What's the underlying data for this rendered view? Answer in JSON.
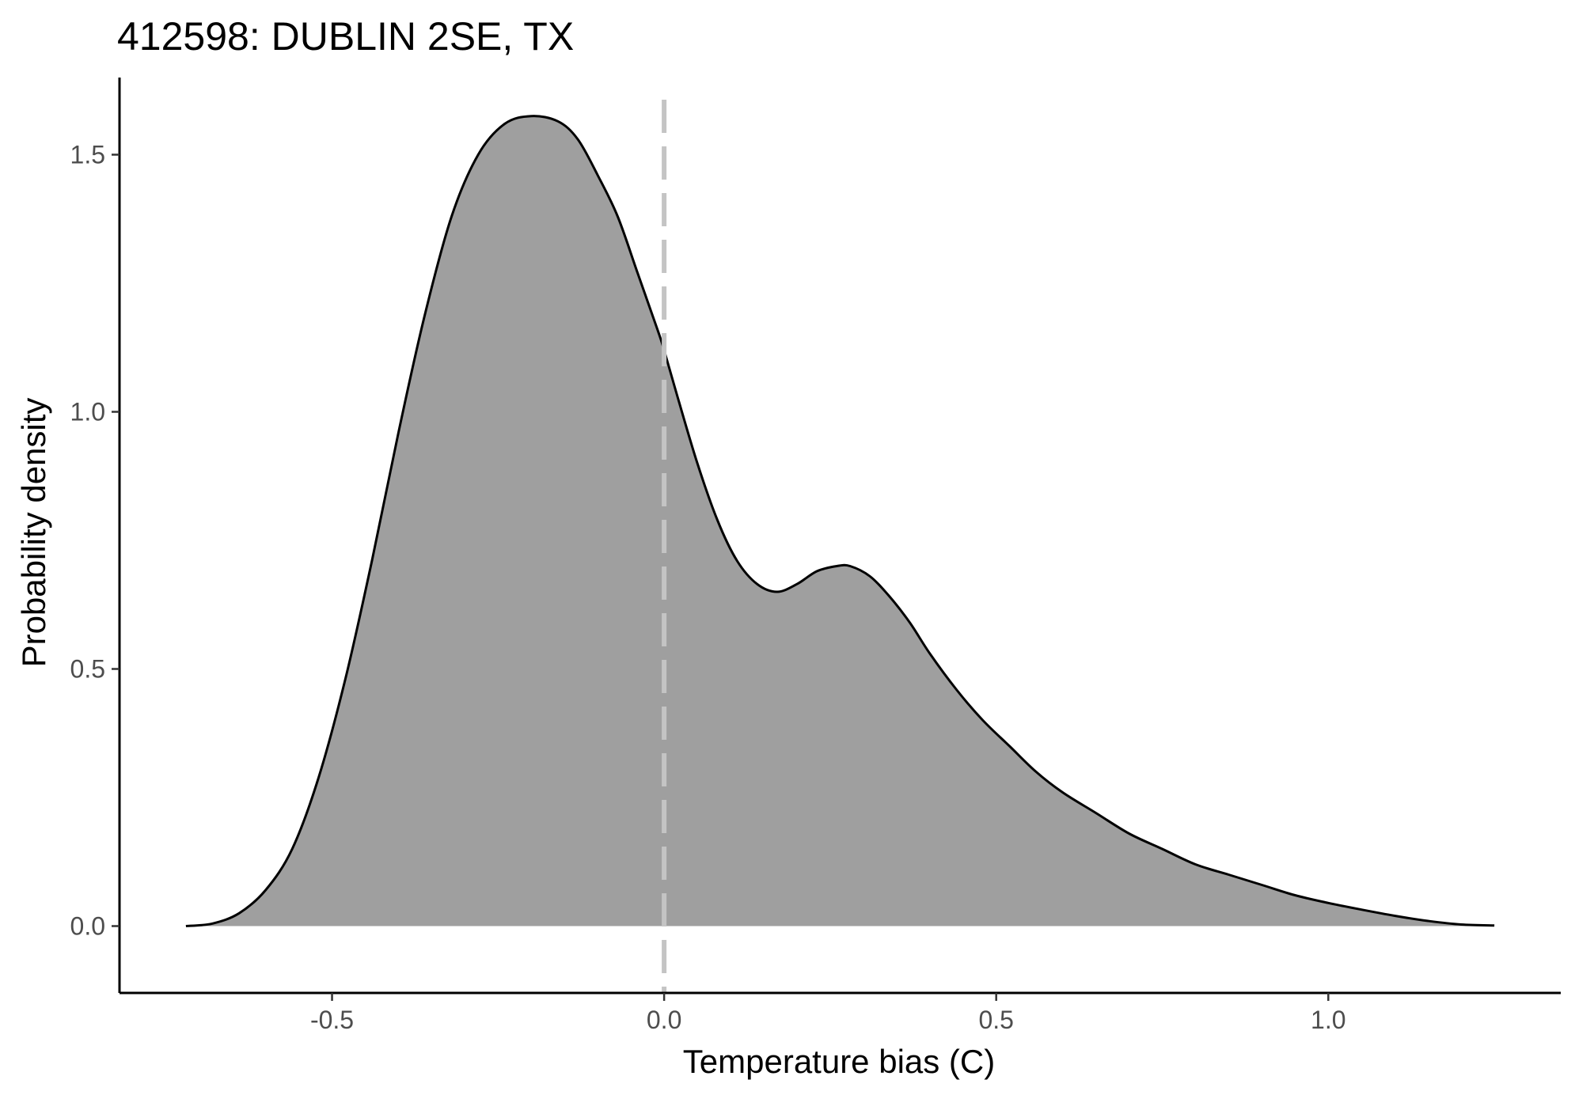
{
  "chart_data": {
    "type": "area",
    "title": "412598: DUBLIN 2SE, TX",
    "xlabel": "Temperature bias (C)",
    "ylabel": "Probability density",
    "xlim": [
      -0.82,
      1.35
    ],
    "ylim": [
      -0.13,
      1.65
    ],
    "x_ticks": [
      -0.5,
      0.0,
      0.5,
      1.0
    ],
    "x_tick_labels": [
      "-0.5",
      "0.0",
      "0.5",
      "1.0"
    ],
    "y_ticks": [
      0.0,
      0.5,
      1.0,
      1.5
    ],
    "y_tick_labels": [
      "0.0",
      "0.5",
      "1.0",
      "1.5"
    ],
    "grid": false,
    "fill_color": "#9f9f9f",
    "line_color": "#000000",
    "reference_line": {
      "x": 0.0,
      "style": "dashed",
      "color": "#c4c4c4"
    },
    "series": [
      {
        "x": [
          -0.72,
          -0.68,
          -0.64,
          -0.6,
          -0.56,
          -0.52,
          -0.48,
          -0.44,
          -0.4,
          -0.36,
          -0.32,
          -0.28,
          -0.24,
          -0.2,
          -0.16,
          -0.13,
          -0.1,
          -0.07,
          -0.04,
          -0.01,
          0.0,
          0.02,
          0.05,
          0.08,
          0.11,
          0.14,
          0.17,
          0.2,
          0.23,
          0.26,
          0.28,
          0.31,
          0.34,
          0.37,
          0.4,
          0.44,
          0.48,
          0.52,
          0.56,
          0.6,
          0.65,
          0.7,
          0.75,
          0.8,
          0.85,
          0.9,
          0.95,
          1.0,
          1.05,
          1.1,
          1.15,
          1.2,
          1.25
        ],
        "y": [
          0.0,
          0.005,
          0.025,
          0.07,
          0.15,
          0.29,
          0.48,
          0.71,
          0.96,
          1.19,
          1.38,
          1.5,
          1.56,
          1.575,
          1.565,
          1.53,
          1.46,
          1.38,
          1.27,
          1.16,
          1.12,
          1.03,
          0.9,
          0.79,
          0.71,
          0.665,
          0.65,
          0.665,
          0.69,
          0.7,
          0.7,
          0.68,
          0.64,
          0.59,
          0.53,
          0.46,
          0.4,
          0.35,
          0.3,
          0.26,
          0.22,
          0.18,
          0.15,
          0.12,
          0.1,
          0.08,
          0.06,
          0.045,
          0.032,
          0.02,
          0.01,
          0.003,
          0.001
        ]
      }
    ]
  }
}
